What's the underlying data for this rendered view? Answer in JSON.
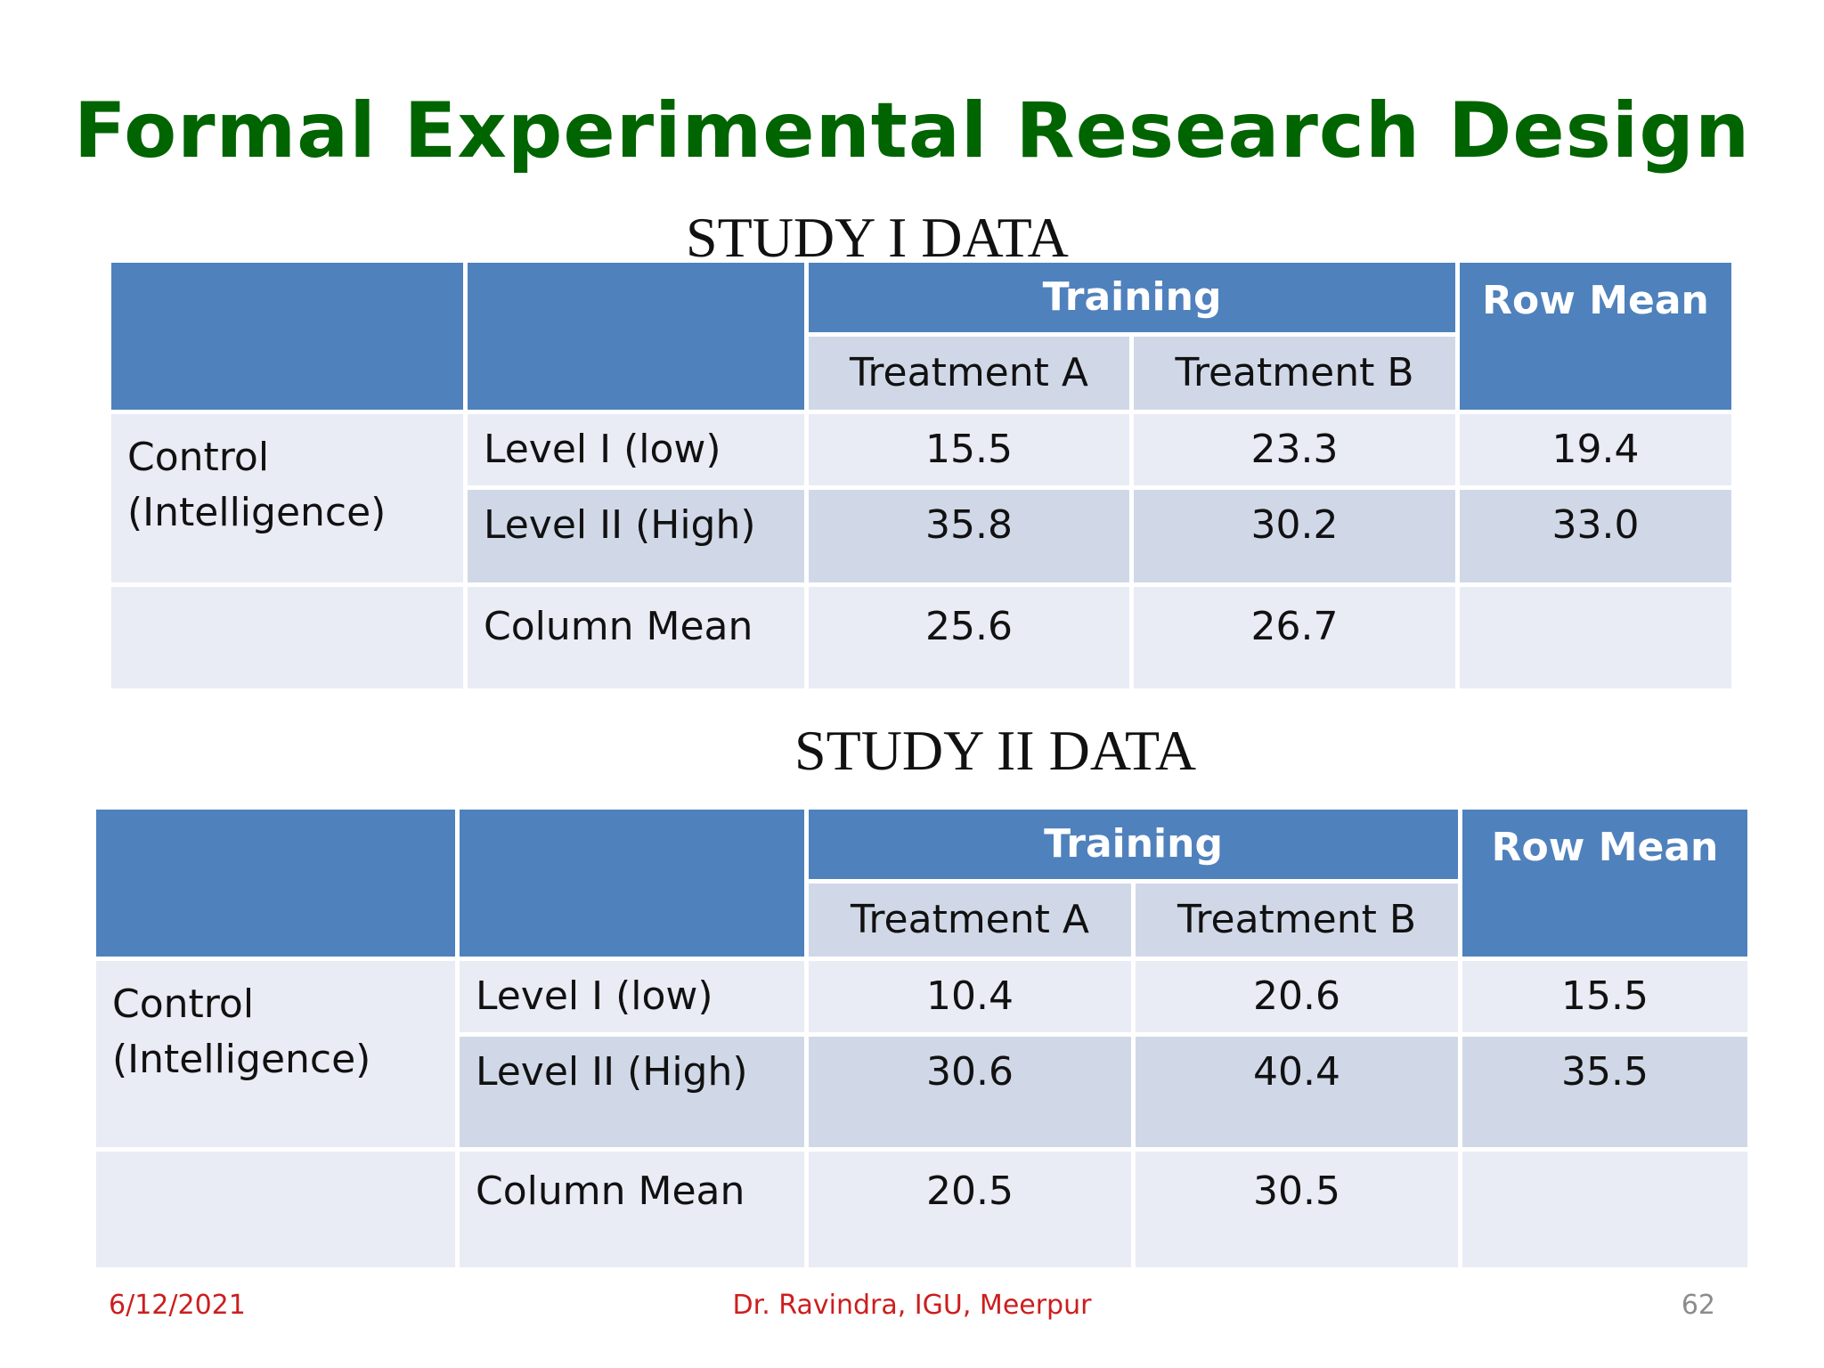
{
  "title": "Formal Experimental Research Design",
  "study1": {
    "caption": "STUDY I DATA",
    "training": "Training",
    "row_mean": "Row Mean",
    "treatment_a": "Treatment A",
    "treatment_b": "Treatment B",
    "control": "Control (Intelligence)",
    "level1": "Level I (low)",
    "level2": "Level II (High)",
    "column_mean": "Column Mean",
    "values": {
      "l1_a": "15.5",
      "l1_b": "23.3",
      "l1_mean": "19.4",
      "l2_a": "35.8",
      "l2_b": "30.2",
      "l2_mean": "33.0",
      "cm_a": "25.6",
      "cm_b": "26.7"
    }
  },
  "study2": {
    "caption": "STUDY II DATA",
    "training": "Training",
    "row_mean": "Row Mean",
    "treatment_a": "Treatment A",
    "treatment_b": "Treatment B",
    "control": "Control (Intelligence)",
    "level1": "Level I (low)",
    "level2": "Level II (High)",
    "column_mean": "Column Mean",
    "values": {
      "l1_a": "10.4",
      "l1_b": "20.6",
      "l1_mean": "15.5",
      "l2_a": "30.6",
      "l2_b": "40.4",
      "l2_mean": "35.5",
      "cm_a": "20.5",
      "cm_b": "30.5"
    }
  },
  "footer": {
    "date": "6/12/2021",
    "author": "Dr. Ravindra, IGU, Meerpur",
    "page": "62"
  },
  "colors": {
    "title": "#006400",
    "header": "#4f81bd",
    "band_dark": "#d0d8e8",
    "band_light": "#e9ebf5",
    "footer_text": "#cc1e1e"
  }
}
